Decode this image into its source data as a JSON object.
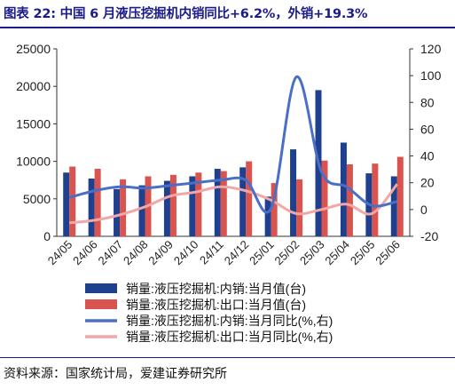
{
  "title": "图表 22: 中国 6 月液压挖掘机内销同比+6.2%，外销+19.3%",
  "source": "资料来源：国家统计局，爱建证券研究所",
  "colors": {
    "domestic_bar": "#1f3f8f",
    "export_bar": "#d9534f",
    "domestic_line": "#4a6fc7",
    "export_line": "#f2a7a7",
    "title": "#1b1b8a"
  },
  "chart_data": {
    "type": "bar",
    "categories": [
      "24/05",
      "24/06",
      "24/07",
      "24/08",
      "24/09",
      "24/10",
      "24/11",
      "24/12",
      "25/01",
      "25/02",
      "25/03",
      "25/04",
      "25/05",
      "25/06"
    ],
    "left_axis": {
      "min": 0,
      "max": 25000,
      "ticks": [
        0,
        5000,
        10000,
        15000,
        20000,
        25000
      ]
    },
    "right_axis": {
      "min": -20,
      "max": 120,
      "ticks": [
        -20,
        0,
        20,
        40,
        60,
        80,
        100,
        120
      ]
    },
    "series": [
      {
        "name": "销量:液压挖掘机:内销:当月值(台)",
        "kind": "bar",
        "axis": "left",
        "values": [
          8500,
          7700,
          6300,
          6800,
          7400,
          8000,
          9000,
          9200,
          5300,
          11600,
          19500,
          12500,
          8400,
          8000
        ]
      },
      {
        "name": "销量:液压挖掘机:出口:当月值(台)",
        "kind": "bar",
        "axis": "left",
        "values": [
          9300,
          9000,
          7600,
          8000,
          8200,
          8500,
          8700,
          10000,
          7100,
          7600,
          10100,
          9600,
          9700,
          10600
        ]
      },
      {
        "name": "销量:液压挖掘机:内销:当月同比(%,右)",
        "kind": "line",
        "axis": "right",
        "values": [
          9,
          14,
          17,
          16,
          18,
          20,
          22,
          22,
          1,
          99,
          28,
          17,
          3,
          6
        ]
      },
      {
        "name": "销量:液压挖掘机:出口:当月同比(%,右)",
        "kind": "line",
        "axis": "right",
        "values": [
          -10,
          -8,
          -4,
          2,
          10,
          13,
          17,
          14,
          7,
          -3,
          0,
          4,
          -3,
          19
        ]
      }
    ],
    "legend_position": "bottom",
    "grid": false
  }
}
